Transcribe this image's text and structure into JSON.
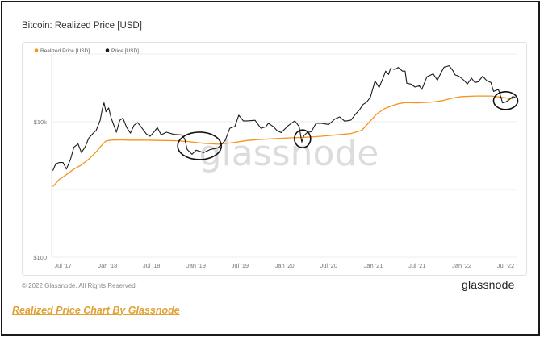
{
  "caption": "Realized Price Chart By Glassnode",
  "copyright": "© 2022 Glassnode. All Rights Reserved.",
  "brand": "glassnode",
  "watermark": "glassnode",
  "colors": {
    "realized": "#f7931a",
    "price": "#1a1a1a",
    "caption": "#e0a135"
  },
  "chart_data": {
    "type": "line",
    "title": "Bitcoin: Realized Price [USD]",
    "yscale": "log",
    "ylim": [
      100,
      100000
    ],
    "yticks": [
      {
        "value": 100,
        "label": "$100"
      },
      {
        "value": 10000,
        "label": "$10k"
      }
    ],
    "xlim": [
      "2017-05-15",
      "2022-08-15"
    ],
    "xticks": [
      "2017-07-01",
      "2018-01-01",
      "2018-07-01",
      "2019-01-01",
      "2019-07-01",
      "2020-01-01",
      "2020-07-01",
      "2021-01-01",
      "2021-07-01",
      "2022-01-01",
      "2022-07-01"
    ],
    "xtick_labels": [
      "Jul '17",
      "Jan '18",
      "Jul '18",
      "Jan '19",
      "Jul '19",
      "Jan '20",
      "Jul '20",
      "Jan '21",
      "Jul '21",
      "Jan '22",
      "Jul '22"
    ],
    "legend_position": "top-left",
    "grid": true,
    "series": [
      {
        "name": "Realized Price [USD]",
        "x": [
          "2017-05-20",
          "2017-06-15",
          "2017-07-15",
          "2017-08-15",
          "2017-09-15",
          "2017-10-15",
          "2017-11-15",
          "2017-12-10",
          "2017-12-25",
          "2018-01-15",
          "2018-02-15",
          "2018-04-01",
          "2018-06-01",
          "2018-08-01",
          "2018-10-01",
          "2018-12-01",
          "2019-02-01",
          "2019-04-01",
          "2019-06-01",
          "2019-08-01",
          "2019-10-01",
          "2019-12-01",
          "2020-02-01",
          "2020-04-01",
          "2020-06-01",
          "2020-08-01",
          "2020-10-01",
          "2020-11-15",
          "2020-12-15",
          "2021-01-15",
          "2021-02-15",
          "2021-03-15",
          "2021-04-15",
          "2021-05-15",
          "2021-07-01",
          "2021-09-01",
          "2021-10-15",
          "2021-11-15",
          "2022-01-01",
          "2022-03-01",
          "2022-05-01",
          "2022-06-15",
          "2022-07-15",
          "2022-08-01"
        ],
        "y": [
          1100,
          1400,
          1650,
          2000,
          2300,
          2800,
          3600,
          4600,
          5200,
          5350,
          5400,
          5350,
          5350,
          5300,
          5250,
          5100,
          4800,
          4650,
          4900,
          5300,
          5500,
          5650,
          5800,
          5900,
          6100,
          6400,
          6700,
          7500,
          9800,
          13000,
          15500,
          17000,
          18500,
          19200,
          19000,
          19500,
          20500,
          22000,
          23500,
          24000,
          24000,
          23000,
          22000,
          21800
        ]
      },
      {
        "name": "Price [USD]",
        "x": [
          "2017-05-20",
          "2017-06-01",
          "2017-06-15",
          "2017-07-01",
          "2017-07-15",
          "2017-08-01",
          "2017-08-15",
          "2017-09-01",
          "2017-09-15",
          "2017-10-01",
          "2017-10-15",
          "2017-11-01",
          "2017-11-15",
          "2017-12-01",
          "2017-12-10",
          "2017-12-17",
          "2017-12-25",
          "2018-01-05",
          "2018-01-15",
          "2018-02-06",
          "2018-02-20",
          "2018-03-05",
          "2018-03-20",
          "2018-04-05",
          "2018-04-20",
          "2018-05-05",
          "2018-05-20",
          "2018-06-10",
          "2018-06-25",
          "2018-07-15",
          "2018-07-25",
          "2018-08-10",
          "2018-09-01",
          "2018-10-01",
          "2018-11-01",
          "2018-11-15",
          "2018-11-25",
          "2018-12-15",
          "2019-01-01",
          "2019-02-01",
          "2019-03-01",
          "2019-04-01",
          "2019-05-01",
          "2019-05-20",
          "2019-06-10",
          "2019-06-26",
          "2019-07-15",
          "2019-08-01",
          "2019-09-01",
          "2019-09-25",
          "2019-10-15",
          "2019-10-26",
          "2019-11-15",
          "2019-12-01",
          "2019-12-18",
          "2020-01-15",
          "2020-02-12",
          "2020-03-01",
          "2020-03-12",
          "2020-03-20",
          "2020-04-05",
          "2020-04-20",
          "2020-05-10",
          "2020-06-01",
          "2020-07-01",
          "2020-07-27",
          "2020-08-15",
          "2020-09-05",
          "2020-10-01",
          "2020-10-20",
          "2020-11-05",
          "2020-11-20",
          "2020-12-05",
          "2020-12-20",
          "2021-01-08",
          "2021-01-25",
          "2021-02-10",
          "2021-02-21",
          "2021-03-05",
          "2021-03-13",
          "2021-04-01",
          "2021-04-14",
          "2021-05-01",
          "2021-05-12",
          "2021-05-19",
          "2021-06-05",
          "2021-06-22",
          "2021-07-10",
          "2021-07-20",
          "2021-08-10",
          "2021-09-05",
          "2021-09-22",
          "2021-10-10",
          "2021-10-20",
          "2021-11-10",
          "2021-11-25",
          "2021-12-05",
          "2021-12-20",
          "2022-01-10",
          "2022-01-24",
          "2022-02-10",
          "2022-02-24",
          "2022-03-10",
          "2022-03-28",
          "2022-04-15",
          "2022-05-01",
          "2022-05-12",
          "2022-06-01",
          "2022-06-13",
          "2022-06-18",
          "2022-07-01",
          "2022-07-15",
          "2022-07-30",
          "2022-08-10"
        ],
        "y": [
          1900,
          2400,
          2500,
          2500,
          2000,
          2800,
          4200,
          4700,
          3500,
          4300,
          5700,
          6700,
          7500,
          10500,
          15500,
          19000,
          14000,
          16000,
          11500,
          7000,
          10500,
          11300,
          8300,
          6800,
          8900,
          9700,
          8300,
          6600,
          6100,
          7300,
          8200,
          6400,
          7000,
          6500,
          6400,
          5600,
          3900,
          3300,
          3800,
          3500,
          3900,
          4100,
          5300,
          8000,
          8500,
          12500,
          10300,
          10300,
          10500,
          8000,
          8400,
          9500,
          8500,
          7400,
          6900,
          8700,
          10300,
          8500,
          5000,
          6200,
          7000,
          7100,
          9500,
          9500,
          9100,
          11000,
          11800,
          10200,
          10600,
          13000,
          15000,
          18000,
          19500,
          23000,
          40000,
          32000,
          44000,
          56000,
          50000,
          61000,
          59000,
          63500,
          56000,
          56000,
          37000,
          36000,
          32500,
          34000,
          30000,
          46000,
          51000,
          41000,
          55000,
          64000,
          67000,
          57000,
          49000,
          47000,
          41000,
          36000,
          44000,
          38000,
          39000,
          47000,
          40000,
          38000,
          28000,
          30000,
          22000,
          19000,
          19500,
          21000,
          23500,
          23000
        ]
      }
    ]
  }
}
